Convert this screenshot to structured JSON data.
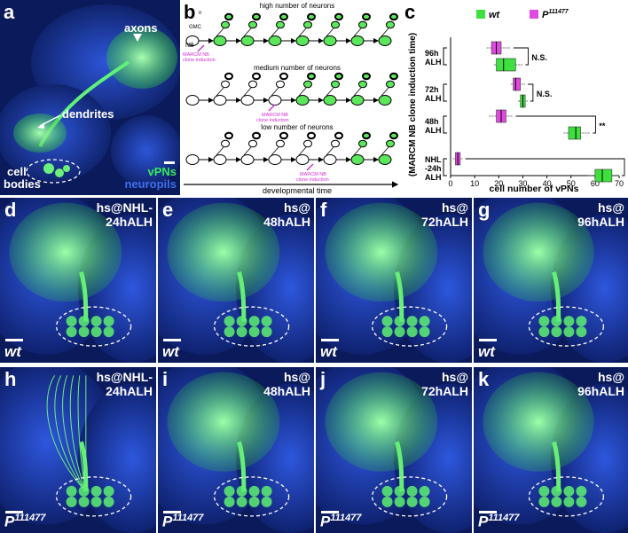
{
  "labels": {
    "a": "a",
    "b": "b",
    "c": "c",
    "d": "d",
    "e": "e",
    "f": "f",
    "g": "g",
    "h": "h",
    "i": "i",
    "j": "j",
    "k": "k"
  },
  "panel_a": {
    "axons": "axons",
    "dendrites": "dendrites",
    "cell_bodies_1": "cell",
    "cell_bodies_2": "bodies",
    "legend_vpns": "vPNs",
    "legend_neuropils": "neuropils",
    "color_vpns": "#39e85a",
    "color_neuropils": "#3f6ff0"
  },
  "panel_b": {
    "title_high": "high number of neurons",
    "title_medium": "medium number of neurons",
    "title_low": "low number of neurons",
    "gmc": "GMC",
    "nb": "NB",
    "n": "n",
    "clone_1": "MARCM NB",
    "clone_2": "clone induction",
    "axis": "developmental time",
    "marcm_color": "#d12bd1",
    "cell_green": "#5be65b"
  },
  "chart_data": {
    "type": "box",
    "xlabel": "cell number of vPNs",
    "ylabel": "(MARCM NB clone induction time)",
    "xlim": [
      0,
      70
    ],
    "xticks": [
      0,
      10,
      20,
      30,
      40,
      50,
      60,
      70
    ],
    "legend": {
      "wt": "wt",
      "P": "P",
      "P_sup": "111477"
    },
    "colors": {
      "wt": "#3ee03e",
      "P": "#e04ae0"
    },
    "categories": [
      {
        "label_1": "96h",
        "label_2": "ALH",
        "significance": "N.S.",
        "P": {
          "q1": 17,
          "median": 19,
          "q3": 21,
          "whisker_low": 15,
          "whisker_high": 25
        },
        "wt": {
          "q1": 19,
          "median": 22,
          "q3": 27,
          "whisker_low": 18,
          "whisker_high": 30
        }
      },
      {
        "label_1": "72h",
        "label_2": "ALH",
        "significance": "N.S.",
        "P": {
          "q1": 26,
          "median": 27,
          "q3": 29,
          "whisker_low": 25,
          "whisker_high": 31
        },
        "wt": {
          "q1": 29,
          "median": 30,
          "q3": 31,
          "whisker_low": 28,
          "whisker_high": 32
        }
      },
      {
        "label_1": "48h",
        "label_2": "ALH",
        "significance": "**",
        "P": {
          "q1": 19,
          "median": 21,
          "q3": 23,
          "whisker_low": 16,
          "whisker_high": 26
        },
        "wt": {
          "q1": 49,
          "median": 52,
          "q3": 54,
          "whisker_low": 47,
          "whisker_high": 58
        }
      },
      {
        "label_1": "NHL",
        "label_2": "-24h",
        "label_3": "ALH",
        "significance": "**",
        "P": {
          "q1": 2,
          "median": 3,
          "q3": 4,
          "whisker_low": 1,
          "whisker_high": 5
        },
        "wt": {
          "q1": 60,
          "median": 63,
          "q3": 67,
          "whisker_low": 57,
          "whisker_high": 70
        }
      }
    ]
  },
  "micrographs": {
    "hs_d_1": "hs@NHL-",
    "hs_d_2": "24hALH",
    "hs_e_1": "hs@",
    "hs_e_2": "48hALH",
    "hs_f_1": "hs@",
    "hs_f_2": "72hALH",
    "hs_g_1": "hs@",
    "hs_g_2": "96hALH",
    "hs_h_1": "hs@NHL-",
    "hs_h_2": "24hALH",
    "hs_i_1": "hs@",
    "hs_i_2": "48hALH",
    "hs_j_1": "hs@",
    "hs_j_2": "72hALH",
    "hs_k_1": "hs@",
    "hs_k_2": "96hALH",
    "wt": "wt",
    "P": "P",
    "P_sup": "111477"
  }
}
